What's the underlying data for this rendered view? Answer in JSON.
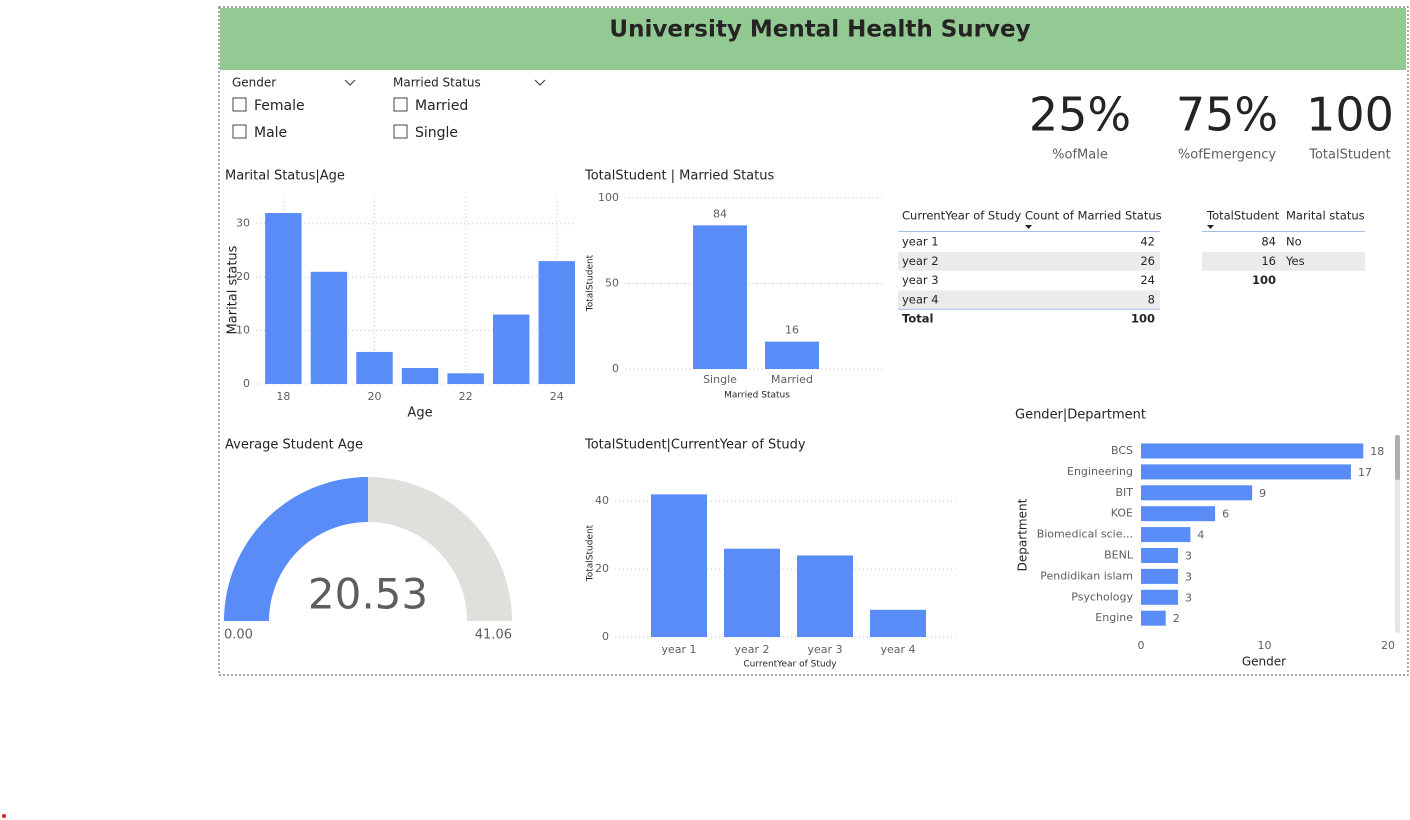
{
  "header": {
    "title": "University Mental Health Survey"
  },
  "slicers": [
    {
      "title": "Gender",
      "options": [
        "Female",
        "Male"
      ]
    },
    {
      "title": "Married Status",
      "options": [
        "Married",
        "Single"
      ]
    }
  ],
  "cards": [
    {
      "value": "25%",
      "label": "%ofMale"
    },
    {
      "value": "75%",
      "label": "%ofEmergency"
    },
    {
      "value": "100",
      "label": "TotalStudent"
    }
  ],
  "tables": [
    {
      "columns": [
        "CurrentYear of Study",
        "Count of Married Status"
      ],
      "rows": [
        [
          "year 1",
          42
        ],
        [
          "year 2",
          26
        ],
        [
          "year 3",
          24
        ],
        [
          "year 4",
          8
        ]
      ],
      "total": [
        "Total",
        100
      ]
    },
    {
      "columns": [
        "TotalStudent",
        "Marital status"
      ],
      "rows": [
        [
          84,
          "No"
        ],
        [
          16,
          "Yes"
        ]
      ],
      "total": [
        100
      ]
    }
  ],
  "chart_data": [
    {
      "type": "bar",
      "title": "Marital Status|Age",
      "x": [
        18,
        19,
        20,
        21,
        22,
        23,
        24
      ],
      "values": [
        32,
        21,
        6,
        3,
        2,
        13,
        23
      ],
      "color": "#598cf6",
      "xlim": [
        17.4,
        24.4
      ],
      "xticks": [
        18,
        20,
        22,
        24
      ],
      "ylim": [
        0,
        35
      ],
      "yticks": [
        0,
        10,
        20,
        30
      ],
      "xlabel": "Age",
      "ylabel": "Marital status",
      "grid": true,
      "xgrid": true
    },
    {
      "type": "bar",
      "title": "TotalStudent | Married Status",
      "categories": [
        "Single",
        "Married"
      ],
      "values": [
        84,
        16
      ],
      "color": "#598cf6",
      "ylim": [
        0,
        100
      ],
      "yticks": [
        0,
        50,
        100
      ],
      "xlabel": "Married Status",
      "ylabel": "TotalStudent",
      "grid": true,
      "data_labels": true
    },
    {
      "type": "gauge",
      "title": "Average Student Age",
      "value": 20.53,
      "min": {
        "value": 0,
        "label": "0.00"
      },
      "max": {
        "value": 41.06,
        "label": "41.06"
      },
      "color": "#598cf6",
      "track_color": "#e1dfdc"
    },
    {
      "type": "bar",
      "title": "TotalStudent|CurrentYear of Study",
      "categories": [
        "year 1",
        "year 2",
        "year 3",
        "year 4"
      ],
      "values": [
        42,
        26,
        24,
        8
      ],
      "color": "#598cf6",
      "ylim": [
        0,
        48
      ],
      "yticks": [
        0,
        20,
        40
      ],
      "xlabel": "CurrentYear of Study",
      "ylabel": "TotalStudent",
      "grid": true
    },
    {
      "type": "bar",
      "horizontal": true,
      "title": "Gender|Department",
      "categories": [
        "BCS",
        "Engineering",
        "BIT",
        "KOE",
        "Biomedical scie...",
        "BENL",
        "Pendidikan islam",
        "Psychology",
        "Engine"
      ],
      "values": [
        18,
        17,
        9,
        6,
        4,
        3,
        3,
        3,
        2
      ],
      "color": "#598cf6",
      "xlim": [
        0,
        20
      ],
      "xticks": [
        0,
        10,
        20
      ],
      "xlabel": "Gender",
      "ylabel": "Department",
      "grid": false,
      "data_labels": true
    }
  ]
}
